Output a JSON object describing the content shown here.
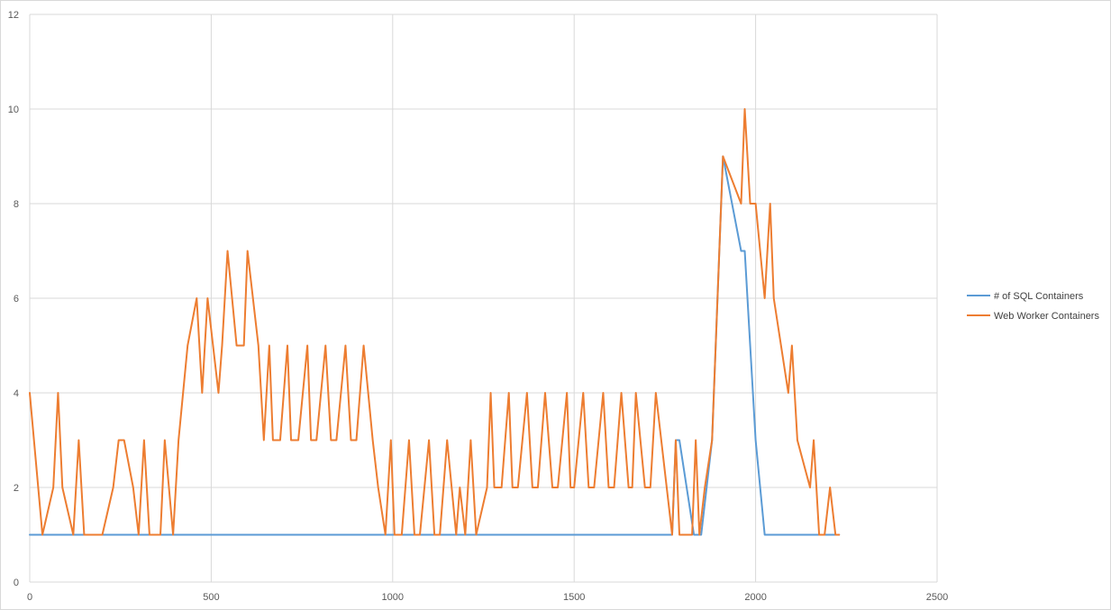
{
  "chart_data": {
    "type": "line",
    "title": "",
    "xlabel": "",
    "ylabel": "",
    "xlim": [
      0,
      2500
    ],
    "ylim": [
      0,
      12
    ],
    "x_ticks": [
      0,
      500,
      1000,
      1500,
      2000,
      2500
    ],
    "y_ticks": [
      0,
      2,
      4,
      6,
      8,
      10,
      12
    ],
    "grid": true,
    "legend_position": "right",
    "series": [
      {
        "name": "# of SQL Containers",
        "color": "#5b9bd5",
        "x": [
          0,
          1770,
          1780,
          1790,
          1830,
          1850,
          1880,
          1910,
          1960,
          1970,
          1985,
          2000,
          2025,
          2230
        ],
        "y": [
          1,
          1,
          3,
          3,
          1,
          1,
          3,
          9,
          7,
          7,
          5,
          3,
          1,
          1
        ]
      },
      {
        "name": "Web Worker Containers",
        "color": "#ed7d31",
        "x": [
          0,
          35,
          65,
          78,
          90,
          120,
          135,
          150,
          200,
          230,
          245,
          260,
          285,
          300,
          315,
          330,
          360,
          372,
          395,
          410,
          435,
          460,
          475,
          490,
          520,
          530,
          545,
          570,
          590,
          600,
          630,
          645,
          660,
          670,
          690,
          710,
          720,
          740,
          765,
          775,
          790,
          815,
          830,
          845,
          870,
          885,
          900,
          920,
          945,
          960,
          980,
          995,
          1005,
          1025,
          1045,
          1060,
          1075,
          1100,
          1115,
          1130,
          1150,
          1175,
          1185,
          1200,
          1215,
          1230,
          1260,
          1270,
          1280,
          1300,
          1320,
          1330,
          1345,
          1370,
          1385,
          1400,
          1420,
          1440,
          1455,
          1480,
          1490,
          1500,
          1525,
          1540,
          1555,
          1580,
          1595,
          1610,
          1630,
          1650,
          1660,
          1670,
          1695,
          1710,
          1725,
          1755,
          1770,
          1780,
          1790,
          1800,
          1825,
          1835,
          1845,
          1860,
          1880,
          1910,
          1960,
          1970,
          1985,
          2000,
          2025,
          2040,
          2050,
          2090,
          2100,
          2115,
          2150,
          2160,
          2175,
          2190,
          2205,
          2220,
          2230
        ],
        "y": [
          4,
          1,
          2,
          4,
          2,
          1,
          3,
          1,
          1,
          2,
          3,
          3,
          2,
          1,
          3,
          1,
          1,
          3,
          1,
          3,
          5,
          6,
          4,
          6,
          4,
          5,
          7,
          5,
          5,
          7,
          5,
          3,
          5,
          3,
          3,
          5,
          3,
          3,
          5,
          3,
          3,
          5,
          3,
          3,
          5,
          3,
          3,
          5,
          3,
          2,
          1,
          3,
          1,
          1,
          3,
          1,
          1,
          3,
          1,
          1,
          3,
          1,
          2,
          1,
          3,
          1,
          2,
          4,
          2,
          2,
          4,
          2,
          2,
          4,
          2,
          2,
          4,
          2,
          2,
          4,
          2,
          2,
          4,
          2,
          2,
          4,
          2,
          2,
          4,
          2,
          2,
          4,
          2,
          2,
          4,
          2,
          1,
          3,
          1,
          1,
          1,
          3,
          1,
          2,
          3,
          9,
          8,
          10,
          8,
          8,
          6,
          8,
          6,
          4,
          5,
          3,
          2,
          3,
          1,
          1,
          2,
          1,
          1
        ]
      }
    ]
  }
}
